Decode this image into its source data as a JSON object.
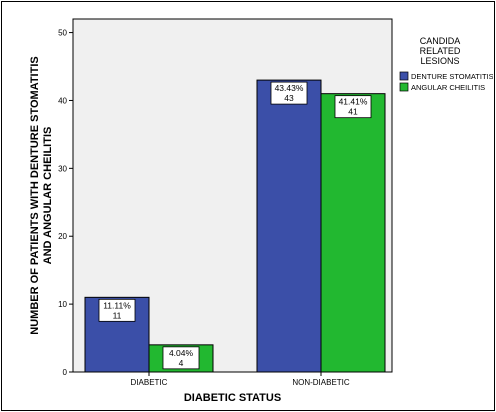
{
  "chart_data": {
    "type": "bar",
    "categories": [
      "DIABETIC",
      "NON-DIABETIC"
    ],
    "series": [
      {
        "name": "DENTURE STOMATITIS",
        "color": "#3B4FA8",
        "values": [
          11,
          43
        ],
        "pct_labels": [
          "11.11%",
          "43.43%"
        ],
        "count_labels": [
          "11",
          "43"
        ]
      },
      {
        "name": "ANGULAR CHEILITIS",
        "color": "#22B830",
        "values": [
          4,
          41
        ],
        "pct_labels": [
          "4.04%",
          "41.41%"
        ],
        "count_labels": [
          "4",
          "41"
        ]
      }
    ],
    "xlabel": "DIABETIC STATUS",
    "ylabel_lines": [
      "NUMBER OF PATIENTS WITH DENTURE STOMATITIS",
      "AND ANGULAR CHEILITIS"
    ],
    "ylim": [
      0,
      52
    ],
    "yticks": [
      0,
      10,
      20,
      30,
      40,
      50
    ],
    "legend": {
      "title_lines": [
        "CANDIDA",
        "RELATED",
        "LESIONS"
      ],
      "placement": "right"
    },
    "plot_background": "#F0F0F0",
    "grid": false
  }
}
